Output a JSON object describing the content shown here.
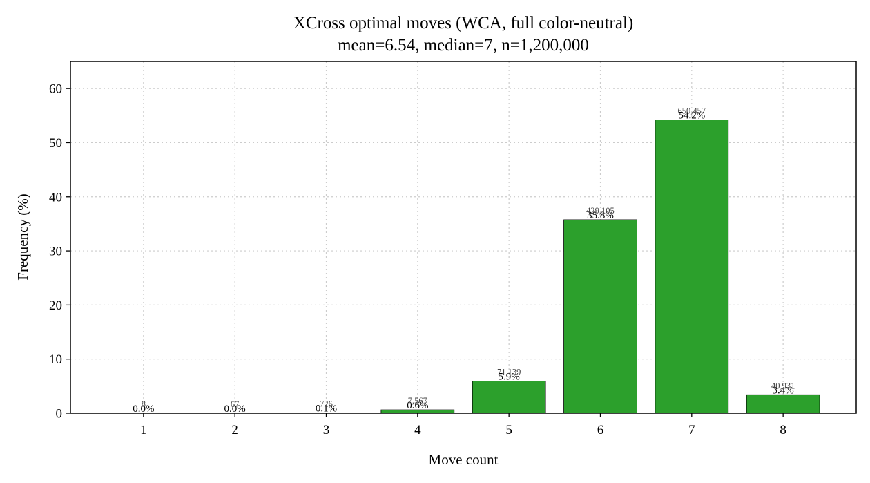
{
  "chart_data": {
    "type": "bar",
    "title": "XCross optimal moves (WCA, full color-neutral)",
    "subtitle": "mean=6.54, median=7, n=1,200,000",
    "xlabel": "Move count",
    "ylabel": "Frequency (%)",
    "categories": [
      "1",
      "2",
      "3",
      "4",
      "5",
      "6",
      "7",
      "8"
    ],
    "values": [
      0.0007,
      0.0056,
      0.06,
      0.63,
      5.93,
      35.76,
      54.2,
      3.41
    ],
    "percent_labels": [
      "0.0%",
      "0.0%",
      "0.1%",
      "0.6%",
      "5.9%",
      "35.8%",
      "54.2%",
      "3.4%"
    ],
    "count_labels": [
      "8",
      "67",
      "726",
      "7,567",
      "71,139",
      "429,105",
      "650,457",
      "40,931"
    ],
    "ylim": [
      0,
      65
    ],
    "yticks": [
      "0",
      "10",
      "20",
      "30",
      "40",
      "50",
      "60"
    ],
    "grid": true,
    "bar_color": "#2ca02c",
    "edge_color": "#000000"
  }
}
